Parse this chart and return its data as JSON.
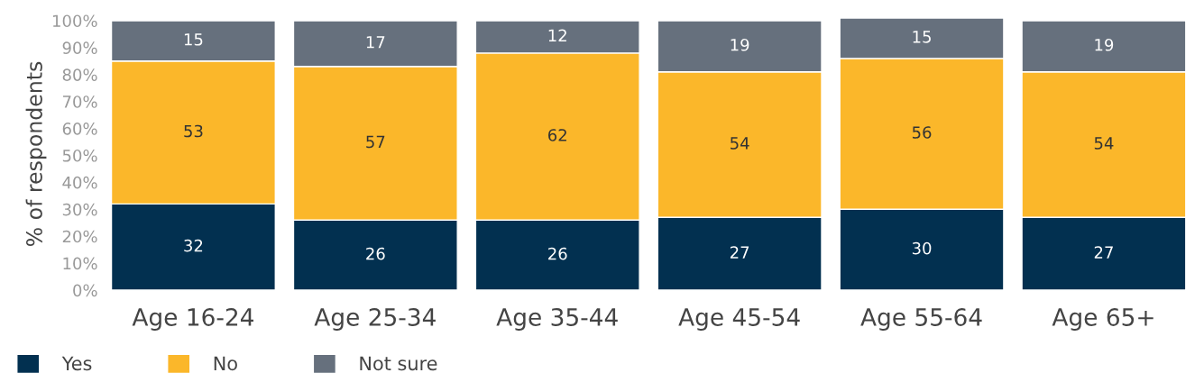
{
  "chart_data": {
    "type": "bar",
    "stacked": true,
    "ylabel": "% of respondents",
    "categories": [
      "Age 16-24",
      "Age 25-34",
      "Age 35-44",
      "Age 45-54",
      "Age 55-64",
      "Age 65+"
    ],
    "series": [
      {
        "name": "Yes",
        "color": "#023050",
        "values": [
          32,
          26,
          26,
          27,
          30,
          27
        ]
      },
      {
        "name": "No",
        "color": "#fbb72a",
        "values": [
          53,
          57,
          62,
          54,
          56,
          54
        ]
      },
      {
        "name": "Not sure",
        "color": "#66707d",
        "values": [
          15,
          17,
          12,
          19,
          15,
          19
        ]
      }
    ],
    "ylim": [
      0,
      101
    ],
    "yticks": [
      {
        "value": 0,
        "label": "0%"
      },
      {
        "value": 10,
        "label": "10%"
      },
      {
        "value": 20,
        "label": "20%"
      },
      {
        "value": 30,
        "label": "30%"
      },
      {
        "value": 40,
        "label": "40%"
      },
      {
        "value": 50,
        "label": "50%"
      },
      {
        "value": 60,
        "label": "60%"
      },
      {
        "value": 70,
        "label": "70%"
      },
      {
        "value": 80,
        "label": "80%"
      },
      {
        "value": 90,
        "label": "90%"
      },
      {
        "value": 100,
        "label": "100%"
      }
    ],
    "data_labels": true,
    "legend": "bottom left",
    "grid": false
  }
}
